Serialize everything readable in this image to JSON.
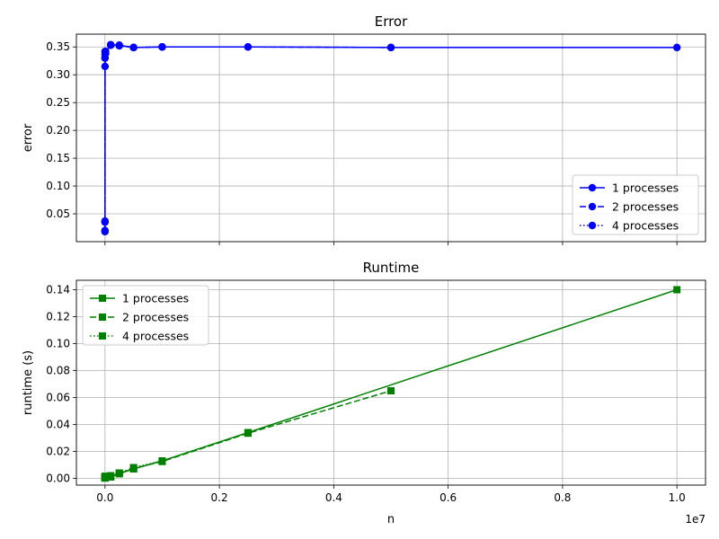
{
  "colors": {
    "error": "#0000ff",
    "runtime": "#008000",
    "grid": "#b0b0b0"
  },
  "x_tick_labels": [
    "0.0",
    "0.2",
    "0.4",
    "0.6",
    "0.8",
    "1.0"
  ],
  "x_multiplier_label": "1e7",
  "chart_data": [
    {
      "type": "line",
      "title": "Error",
      "xlabel": "",
      "ylabel": "error",
      "xlim": [
        -500000,
        10500000
      ],
      "ylim": [
        0.0,
        0.373
      ],
      "yticks": [
        0.05,
        0.1,
        0.15,
        0.2,
        0.25,
        0.3,
        0.35
      ],
      "ytick_labels": [
        "0.05",
        "0.10",
        "0.15",
        "0.20",
        "0.25",
        "0.30",
        "0.35"
      ],
      "grid": true,
      "legend_position": "lower right",
      "marker": "circle",
      "series": [
        {
          "name": "1 processes",
          "linestyle": "solid",
          "x": [
            10,
            100,
            1000,
            10000,
            100000,
            250000,
            500000,
            1000000,
            2500000,
            5000000,
            10000000
          ],
          "y": [
            0.018,
            0.035,
            0.315,
            0.338,
            0.354,
            0.353,
            0.349,
            0.35,
            0.35,
            0.349,
            0.349
          ]
        },
        {
          "name": "2 processes",
          "linestyle": "dashed",
          "x": [
            10,
            100,
            1000,
            10000,
            100000,
            250000,
            500000,
            1000000,
            2500000,
            5000000
          ],
          "y": [
            0.037,
            0.33,
            0.342,
            0.338,
            0.353,
            0.352,
            0.349,
            0.35,
            0.35,
            0.349
          ]
        },
        {
          "name": "4 processes",
          "linestyle": "dotted",
          "x": [
            10,
            100,
            1000,
            10000,
            100000,
            250000,
            500000,
            1000000
          ],
          "y": [
            0.02,
            0.33,
            0.337,
            0.342,
            0.354,
            0.353,
            0.349,
            0.35
          ]
        }
      ]
    },
    {
      "type": "line",
      "title": "Runtime",
      "xlabel": "n",
      "ylabel": "runtime (s)",
      "xlim": [
        -500000,
        10500000
      ],
      "ylim": [
        -0.005,
        0.147
      ],
      "yticks": [
        0.0,
        0.02,
        0.04,
        0.06,
        0.08,
        0.1,
        0.12,
        0.14
      ],
      "ytick_labels": [
        "0.00",
        "0.02",
        "0.04",
        "0.06",
        "0.08",
        "0.10",
        "0.12",
        "0.14"
      ],
      "grid": true,
      "legend_position": "upper left",
      "marker": "square",
      "series": [
        {
          "name": "1 processes",
          "linestyle": "solid",
          "x": [
            10,
            100,
            1000,
            10000,
            100000,
            250000,
            500000,
            1000000,
            2500000,
            10000000
          ],
          "y": [
            0.0002,
            0.0003,
            0.0004,
            0.0006,
            0.001,
            0.0035,
            0.007,
            0.013,
            0.034,
            0.14
          ]
        },
        {
          "name": "2 processes",
          "linestyle": "dashed",
          "x": [
            10,
            100,
            1000,
            10000,
            100000,
            250000,
            500000,
            1000000,
            2500000,
            5000000
          ],
          "y": [
            0.0008,
            0.0009,
            0.001,
            0.0011,
            0.0015,
            0.0035,
            0.0075,
            0.0125,
            0.0335,
            0.065
          ]
        },
        {
          "name": "4 processes",
          "linestyle": "dotted",
          "x": [
            10,
            100,
            1000,
            10000,
            100000,
            250000,
            500000,
            1000000
          ],
          "y": [
            0.0012,
            0.0013,
            0.0014,
            0.0016,
            0.002,
            0.004,
            0.008,
            0.013
          ]
        }
      ]
    }
  ]
}
